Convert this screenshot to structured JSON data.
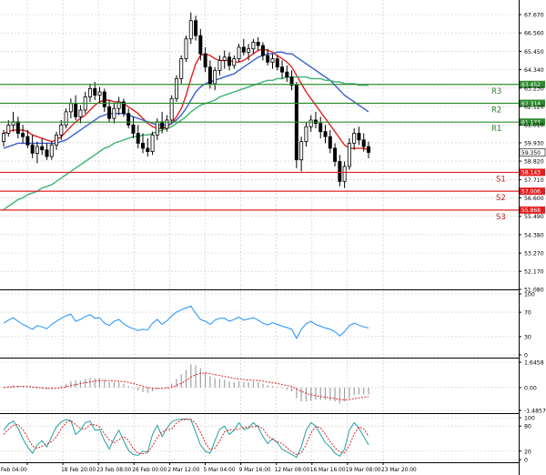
{
  "chart_data": {
    "type": "line",
    "title": "",
    "price_axis": {
      "ticks": [
        67.67,
        66.56,
        65.45,
        64.34,
        63.23,
        62.12,
        61.01,
        59.93,
        58.82,
        57.71,
        56.6,
        55.49,
        54.38,
        53.27,
        52.17,
        51.08
      ],
      "tick_labels": [
        "67.670",
        "66.560",
        "65.450",
        "64.340",
        "63.230",
        "62.120",
        "61.010",
        "59.930",
        "58.820",
        "57.710",
        "56.600",
        "55.490",
        "54.380",
        "53.270",
        "52.170",
        "51.080"
      ],
      "range": [
        51.08,
        68.4
      ]
    },
    "levels": [
      {
        "name": "R3",
        "value": 63.452,
        "label": "63.452",
        "kind": "resistance",
        "color": "#2e8b2e"
      },
      {
        "name": "R2",
        "value": 62.314,
        "label": "62.314",
        "kind": "resistance",
        "color": "#2e8b2e"
      },
      {
        "name": "R1",
        "value": 61.177,
        "label": "61.177",
        "kind": "resistance",
        "color": "#2e8b2e"
      },
      {
        "name": "S1",
        "value": 58.143,
        "label": "58.143",
        "kind": "support",
        "color": "#e02020"
      },
      {
        "name": "S2",
        "value": 57.006,
        "label": "57.006",
        "kind": "support",
        "color": "#e02020"
      },
      {
        "name": "S3",
        "value": 55.868,
        "label": "55.868",
        "kind": "support",
        "color": "#e02020"
      }
    ],
    "current_price": {
      "value": 59.35,
      "label": "59.350"
    },
    "x_axis": {
      "tick_labels": [
        "Feb 04:00",
        "18 Feb 20:00",
        "23 Feb 08:00",
        "26 Feb 00:00",
        "2 Mar 12:00",
        "5 Mar 04:00",
        "9 Mar 16:00",
        "12 Mar 08:00",
        "16 Mar 16:00",
        "19 Mar 08:00",
        "23 Mar 20:00"
      ]
    },
    "candles": [
      [
        60.0,
        60.7,
        59.7,
        60.5
      ],
      [
        60.5,
        61.3,
        60.3,
        61.0
      ],
      [
        61.0,
        61.8,
        60.6,
        61.2
      ],
      [
        61.2,
        61.5,
        60.2,
        60.5
      ],
      [
        60.5,
        61.0,
        59.9,
        60.3
      ],
      [
        60.3,
        60.7,
        59.6,
        59.8
      ],
      [
        59.8,
        60.4,
        59.0,
        59.3
      ],
      [
        59.3,
        60.0,
        58.7,
        59.7
      ],
      [
        59.7,
        60.2,
        59.2,
        59.5
      ],
      [
        59.5,
        59.9,
        58.9,
        59.1
      ],
      [
        59.1,
        60.0,
        58.9,
        59.8
      ],
      [
        59.8,
        60.6,
        59.5,
        60.4
      ],
      [
        60.4,
        61.3,
        60.1,
        61.0
      ],
      [
        61.0,
        62.0,
        60.8,
        61.8
      ],
      [
        61.8,
        62.6,
        61.4,
        62.3
      ],
      [
        62.3,
        62.8,
        61.3,
        61.5
      ],
      [
        61.5,
        62.2,
        61.1,
        61.9
      ],
      [
        61.9,
        63.0,
        61.7,
        62.7
      ],
      [
        62.7,
        63.5,
        62.4,
        63.2
      ],
      [
        63.2,
        63.6,
        62.5,
        62.8
      ],
      [
        62.8,
        63.3,
        62.3,
        63.0
      ],
      [
        63.0,
        63.2,
        61.8,
        62.1
      ],
      [
        62.1,
        62.5,
        61.2,
        61.4
      ],
      [
        61.4,
        62.3,
        61.1,
        62.0
      ],
      [
        62.0,
        62.7,
        61.6,
        62.4
      ],
      [
        62.4,
        62.6,
        61.5,
        61.7
      ],
      [
        61.7,
        62.0,
        60.8,
        61.0
      ],
      [
        61.0,
        61.5,
        60.2,
        60.5
      ],
      [
        60.5,
        61.0,
        59.6,
        59.9
      ],
      [
        59.9,
        60.5,
        59.3,
        59.6
      ],
      [
        59.6,
        60.2,
        59.1,
        59.4
      ],
      [
        59.4,
        60.6,
        59.2,
        60.4
      ],
      [
        60.4,
        61.4,
        60.1,
        61.2
      ],
      [
        61.2,
        61.8,
        60.5,
        60.8
      ],
      [
        60.8,
        61.6,
        60.6,
        61.3
      ],
      [
        61.3,
        62.8,
        61.1,
        62.6
      ],
      [
        62.6,
        64.0,
        62.4,
        63.8
      ],
      [
        63.8,
        65.2,
        63.5,
        65.0
      ],
      [
        65.0,
        66.4,
        64.8,
        66.2
      ],
      [
        66.2,
        67.8,
        65.9,
        67.3
      ],
      [
        67.3,
        67.6,
        66.1,
        66.4
      ],
      [
        66.4,
        66.8,
        64.9,
        65.3
      ],
      [
        65.3,
        65.7,
        64.2,
        64.5
      ],
      [
        64.5,
        64.9,
        63.2,
        63.5
      ],
      [
        63.5,
        64.5,
        63.1,
        64.3
      ],
      [
        64.3,
        65.2,
        64.0,
        64.9
      ],
      [
        64.9,
        65.5,
        64.4,
        65.1
      ],
      [
        65.1,
        65.4,
        64.3,
        64.6
      ],
      [
        64.6,
        65.2,
        64.4,
        65.0
      ],
      [
        65.0,
        65.9,
        64.8,
        65.7
      ],
      [
        65.7,
        66.2,
        65.2,
        65.4
      ],
      [
        65.4,
        65.9,
        64.9,
        65.6
      ],
      [
        65.6,
        66.2,
        65.3,
        66.0
      ],
      [
        66.0,
        66.3,
        65.5,
        65.8
      ],
      [
        65.8,
        66.0,
        64.9,
        65.2
      ],
      [
        65.2,
        65.6,
        64.6,
        64.8
      ],
      [
        64.8,
        65.3,
        64.4,
        65.0
      ],
      [
        65.0,
        65.2,
        64.3,
        64.5
      ],
      [
        64.5,
        64.9,
        63.8,
        64.2
      ],
      [
        64.2,
        64.6,
        63.6,
        63.9
      ],
      [
        63.9,
        64.3,
        63.1,
        63.4
      ],
      [
        63.4,
        63.6,
        58.4,
        58.9
      ],
      [
        58.9,
        60.3,
        58.2,
        60.0
      ],
      [
        60.0,
        61.2,
        59.7,
        60.9
      ],
      [
        60.9,
        61.6,
        60.6,
        61.3
      ],
      [
        61.3,
        61.8,
        60.8,
        61.1
      ],
      [
        61.1,
        61.5,
        60.2,
        60.6
      ],
      [
        60.6,
        61.0,
        59.9,
        60.3
      ],
      [
        60.3,
        60.7,
        59.3,
        59.6
      ],
      [
        59.6,
        59.9,
        58.5,
        58.8
      ],
      [
        58.8,
        59.2,
        57.3,
        57.6
      ],
      [
        57.6,
        58.8,
        57.2,
        58.5
      ],
      [
        58.5,
        60.2,
        58.3,
        59.9
      ],
      [
        59.9,
        60.8,
        59.5,
        60.5
      ],
      [
        60.5,
        60.9,
        59.8,
        60.1
      ],
      [
        60.1,
        60.5,
        59.4,
        59.7
      ],
      [
        59.7,
        60.0,
        59.0,
        59.35
      ]
    ],
    "series": [
      {
        "name": "",
        "color": "#e02020",
        "values": [
          60.5,
          60.6,
          60.7,
          60.7,
          60.7,
          60.6,
          60.4,
          60.3,
          60.2,
          60.1,
          60.0,
          60.1,
          60.3,
          60.6,
          60.9,
          61.2,
          61.4,
          61.6,
          61.9,
          62.2,
          62.4,
          62.5,
          62.5,
          62.4,
          62.4,
          62.3,
          62.1,
          61.9,
          61.7,
          61.4,
          61.1,
          60.9,
          60.8,
          60.8,
          60.9,
          61.1,
          61.5,
          62.0,
          62.8,
          63.8,
          64.7,
          65.2,
          65.3,
          65.2,
          65.0,
          64.9,
          64.9,
          64.9,
          64.8,
          64.8,
          64.9,
          65.1,
          65.3,
          65.5,
          65.6,
          65.5,
          65.4,
          65.2,
          65.0,
          64.8,
          64.5,
          64.0,
          63.5,
          63.0,
          62.6,
          62.2,
          61.8,
          61.4,
          61.0,
          60.6,
          60.2,
          59.8,
          59.6,
          59.6,
          59.6,
          59.6,
          59.5
        ]
      },
      {
        "name": "",
        "color": "#3a5fcd",
        "values": [
          59.6,
          59.7,
          59.8,
          59.9,
          59.9,
          59.9,
          59.9,
          59.9,
          59.9,
          59.9,
          59.9,
          59.9,
          60.0,
          60.1,
          60.3,
          60.5,
          60.7,
          60.9,
          61.1,
          61.3,
          61.5,
          61.6,
          61.7,
          61.7,
          61.7,
          61.7,
          61.6,
          61.5,
          61.4,
          61.3,
          61.2,
          61.1,
          61.0,
          61.0,
          61.0,
          61.1,
          61.3,
          61.6,
          62.0,
          62.5,
          63.0,
          63.3,
          63.5,
          63.6,
          63.7,
          63.8,
          63.9,
          64.0,
          64.1,
          64.3,
          64.5,
          64.7,
          64.9,
          65.1,
          65.2,
          65.3,
          65.3,
          65.4,
          65.4,
          65.3,
          65.3,
          65.1,
          64.9,
          64.7,
          64.5,
          64.3,
          64.1,
          63.9,
          63.7,
          63.4,
          63.1,
          62.8,
          62.6,
          62.4,
          62.2,
          62.0,
          61.8
        ]
      },
      {
        "name": "",
        "color": "#3cb371",
        "values": [
          55.9,
          56.1,
          56.3,
          56.5,
          56.6,
          56.8,
          56.9,
          57.0,
          57.2,
          57.3,
          57.4,
          57.6,
          57.8,
          58.0,
          58.2,
          58.4,
          58.6,
          58.8,
          59.0,
          59.2,
          59.4,
          59.6,
          59.7,
          59.9,
          60.0,
          60.1,
          60.2,
          60.3,
          60.3,
          60.4,
          60.4,
          60.5,
          60.6,
          60.7,
          60.8,
          60.9,
          61.1,
          61.3,
          61.5,
          61.8,
          62.0,
          62.2,
          62.3,
          62.4,
          62.5,
          62.7,
          62.8,
          62.9,
          63.0,
          63.1,
          63.2,
          63.3,
          63.4,
          63.5,
          63.6,
          63.7,
          63.7,
          63.8,
          63.8,
          63.9,
          63.9,
          63.9,
          63.9,
          63.9,
          63.8,
          63.8,
          63.8,
          63.7,
          63.7,
          63.6,
          63.6,
          63.5,
          63.5,
          63.5,
          63.4,
          63.4,
          63.4
        ]
      }
    ],
    "rsi_panel": {
      "tick_labels": [
        "100",
        "70",
        "30",
        "0"
      ],
      "ticks": [
        100,
        70,
        30,
        0
      ],
      "range": [
        0,
        100
      ],
      "values": [
        52,
        57,
        61,
        55,
        50,
        46,
        42,
        48,
        46,
        43,
        50,
        55,
        60,
        64,
        67,
        55,
        58,
        63,
        66,
        60,
        61,
        52,
        48,
        55,
        58,
        51,
        46,
        43,
        40,
        42,
        41,
        52,
        58,
        50,
        56,
        64,
        70,
        74,
        77,
        80,
        68,
        58,
        55,
        50,
        57,
        60,
        60,
        55,
        58,
        62,
        57,
        59,
        61,
        57,
        52,
        49,
        53,
        50,
        47,
        45,
        42,
        27,
        42,
        51,
        55,
        50,
        47,
        44,
        42,
        38,
        31,
        38,
        48,
        52,
        49,
        46,
        44
      ]
    },
    "macd_panel": {
      "tick_labels": [
        "1.6458",
        "0.00",
        "-1.4857"
      ],
      "ticks": [
        1.6458,
        0,
        -1.4857
      ],
      "range": [
        -1.4857,
        1.6458
      ],
      "histogram": [
        0.05,
        0.1,
        0.15,
        0.12,
        0.08,
        0.03,
        -0.05,
        -0.08,
        -0.1,
        -0.12,
        -0.1,
        -0.02,
        0.1,
        0.25,
        0.4,
        0.45,
        0.45,
        0.55,
        0.65,
        0.6,
        0.6,
        0.5,
        0.35,
        0.35,
        0.35,
        0.25,
        0.1,
        -0.05,
        -0.2,
        -0.3,
        -0.35,
        -0.25,
        -0.1,
        -0.05,
        0.05,
        0.25,
        0.55,
        0.85,
        1.15,
        1.5,
        1.45,
        1.25,
        1.0,
        0.75,
        0.6,
        0.55,
        0.5,
        0.4,
        0.35,
        0.4,
        0.35,
        0.35,
        0.4,
        0.35,
        0.25,
        0.15,
        0.1,
        0.05,
        -0.05,
        -0.15,
        -0.25,
        -0.7,
        -0.9,
        -0.9,
        -0.85,
        -0.8,
        -0.8,
        -0.8,
        -0.85,
        -0.9,
        -1.05,
        -0.9,
        -0.7,
        -0.5,
        -0.45,
        -0.45,
        -0.45
      ],
      "signal": [
        0.0,
        0.02,
        0.05,
        0.07,
        0.08,
        0.07,
        0.04,
        0.01,
        -0.02,
        -0.05,
        -0.06,
        -0.05,
        -0.02,
        0.04,
        0.12,
        0.19,
        0.25,
        0.31,
        0.37,
        0.41,
        0.45,
        0.46,
        0.44,
        0.42,
        0.41,
        0.38,
        0.33,
        0.26,
        0.17,
        0.08,
        0.0,
        -0.05,
        -0.06,
        -0.06,
        -0.04,
        0.02,
        0.13,
        0.28,
        0.46,
        0.67,
        0.83,
        0.92,
        0.94,
        0.9,
        0.84,
        0.78,
        0.72,
        0.66,
        0.6,
        0.56,
        0.52,
        0.49,
        0.47,
        0.45,
        0.41,
        0.36,
        0.31,
        0.26,
        0.2,
        0.13,
        0.06,
        -0.09,
        -0.25,
        -0.38,
        -0.47,
        -0.54,
        -0.59,
        -0.63,
        -0.67,
        -0.71,
        -0.78,
        -0.8,
        -0.78,
        -0.72,
        -0.67,
        -0.63,
        -0.6
      ]
    },
    "stoch_panel": {
      "tick_labels": [
        "100",
        "80",
        "20",
        "0"
      ],
      "ticks": [
        100,
        80,
        20,
        0
      ],
      "range": [
        0,
        100
      ],
      "main": [
        70,
        85,
        92,
        75,
        50,
        30,
        15,
        35,
        45,
        30,
        55,
        78,
        90,
        95,
        93,
        60,
        70,
        88,
        92,
        70,
        72,
        45,
        25,
        50,
        70,
        45,
        22,
        12,
        10,
        20,
        18,
        60,
        82,
        55,
        75,
        90,
        95,
        96,
        97,
        95,
        65,
        35,
        20,
        15,
        45,
        72,
        80,
        60,
        70,
        88,
        72,
        75,
        88,
        78,
        55,
        38,
        50,
        40,
        25,
        18,
        12,
        5,
        30,
        70,
        88,
        80,
        60,
        40,
        30,
        15,
        8,
        25,
        70,
        88,
        75,
        55,
        35
      ],
      "signal": [
        60,
        72,
        82,
        84,
        72,
        52,
        32,
        27,
        32,
        37,
        43,
        54,
        74,
        88,
        93,
        83,
        74,
        73,
        83,
        83,
        78,
        62,
        47,
        40,
        48,
        55,
        46,
        26,
        15,
        14,
        16,
        33,
        53,
        66,
        71,
        73,
        87,
        94,
        96,
        96,
        86,
        65,
        40,
        23,
        27,
        44,
        66,
        71,
        70,
        73,
        77,
        78,
        78,
        80,
        74,
        57,
        48,
        43,
        38,
        28,
        18,
        12,
        16,
        35,
        63,
        79,
        76,
        60,
        43,
        28,
        18,
        16,
        34,
        61,
        78,
        73,
        55
      ]
    }
  }
}
